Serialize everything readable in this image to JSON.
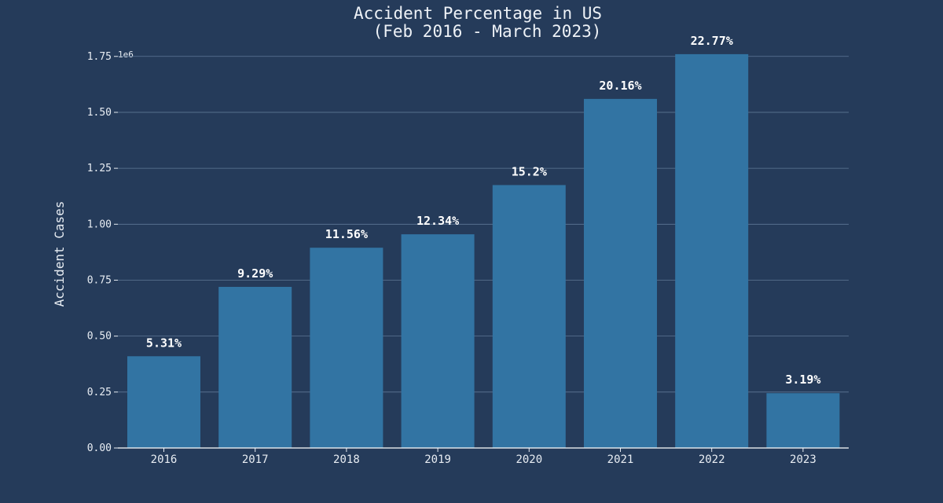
{
  "chart_data": {
    "type": "bar",
    "title_lines": [
      "Accident Percentage in US",
      "(Feb 2016 - March 2023)"
    ],
    "xlabel": "",
    "ylabel": "Accident Cases",
    "y_multiplier": "1e6",
    "ylim": [
      0,
      1.85
    ],
    "yticks": [
      0.0,
      0.25,
      0.5,
      0.75,
      1.0,
      1.25,
      1.5,
      1.75
    ],
    "ytick_labels": [
      "0.00",
      "0.25",
      "0.50",
      "0.75",
      "1.00",
      "1.25",
      "1.50",
      "1.75"
    ],
    "grid": true,
    "categories": [
      "2016",
      "2017",
      "2018",
      "2019",
      "2020",
      "2021",
      "2022",
      "2023"
    ],
    "values": [
      0.41,
      0.72,
      0.895,
      0.955,
      1.175,
      1.56,
      1.76,
      0.245
    ],
    "data_labels": [
      "5.31%",
      "9.29%",
      "11.56%",
      "12.34%",
      "15.2%",
      "20.16%",
      "22.77%",
      "3.19%"
    ],
    "bar_color": "#3274a3",
    "background_color": "#253b5a"
  }
}
